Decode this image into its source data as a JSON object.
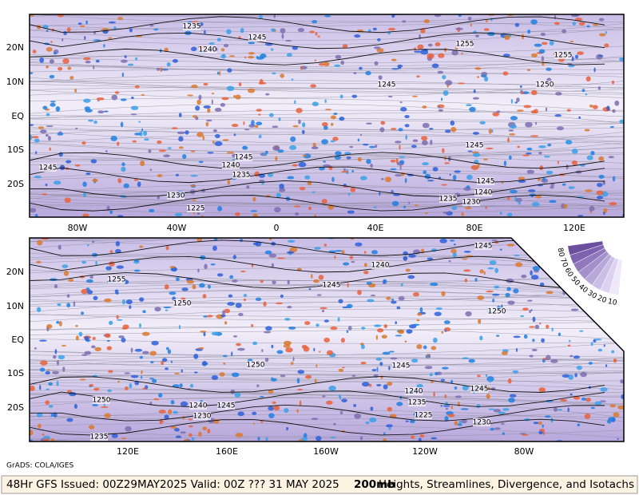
{
  "top_panel": {
    "x_labels": [
      "80W",
      "40W",
      "0",
      "40E",
      "80E",
      "120E"
    ],
    "y_labels": [
      "20N",
      "10N",
      "EQ",
      "10S",
      "20S"
    ],
    "contour_labels": [
      "1235",
      "1245",
      "1240",
      "1255",
      "1255",
      "1245",
      "1250",
      "1245",
      "1245",
      "1245",
      "1240",
      "1235",
      "1230",
      "1225",
      "1245",
      "1240",
      "1235",
      "1230"
    ]
  },
  "bottom_panel": {
    "x_labels": [
      "120E",
      "160E",
      "160W",
      "120W",
      "80W"
    ],
    "y_labels": [
      "20N",
      "10N",
      "EQ",
      "10S",
      "20S"
    ],
    "contour_labels": [
      "1245",
      "1240",
      "1255",
      "1245",
      "1250",
      "1250",
      "1250",
      "1245",
      "1245",
      "1240",
      "1235",
      "1225",
      "1250",
      "1240",
      "1245",
      "1230",
      "1230",
      "1235"
    ]
  },
  "legend": {
    "labels": [
      "80",
      "70",
      "60",
      "50",
      "40",
      "30",
      "20",
      "10"
    ]
  },
  "credit": "GrADS: COLA/IGES",
  "footer": {
    "left": "48Hr GFS Issued: 00Z29MAY2025 Valid: 00Z ??? 31 MAY 2025",
    "level": "200mb",
    "description": "Heights, Streamlines, Divergence, and Isotachs"
  }
}
